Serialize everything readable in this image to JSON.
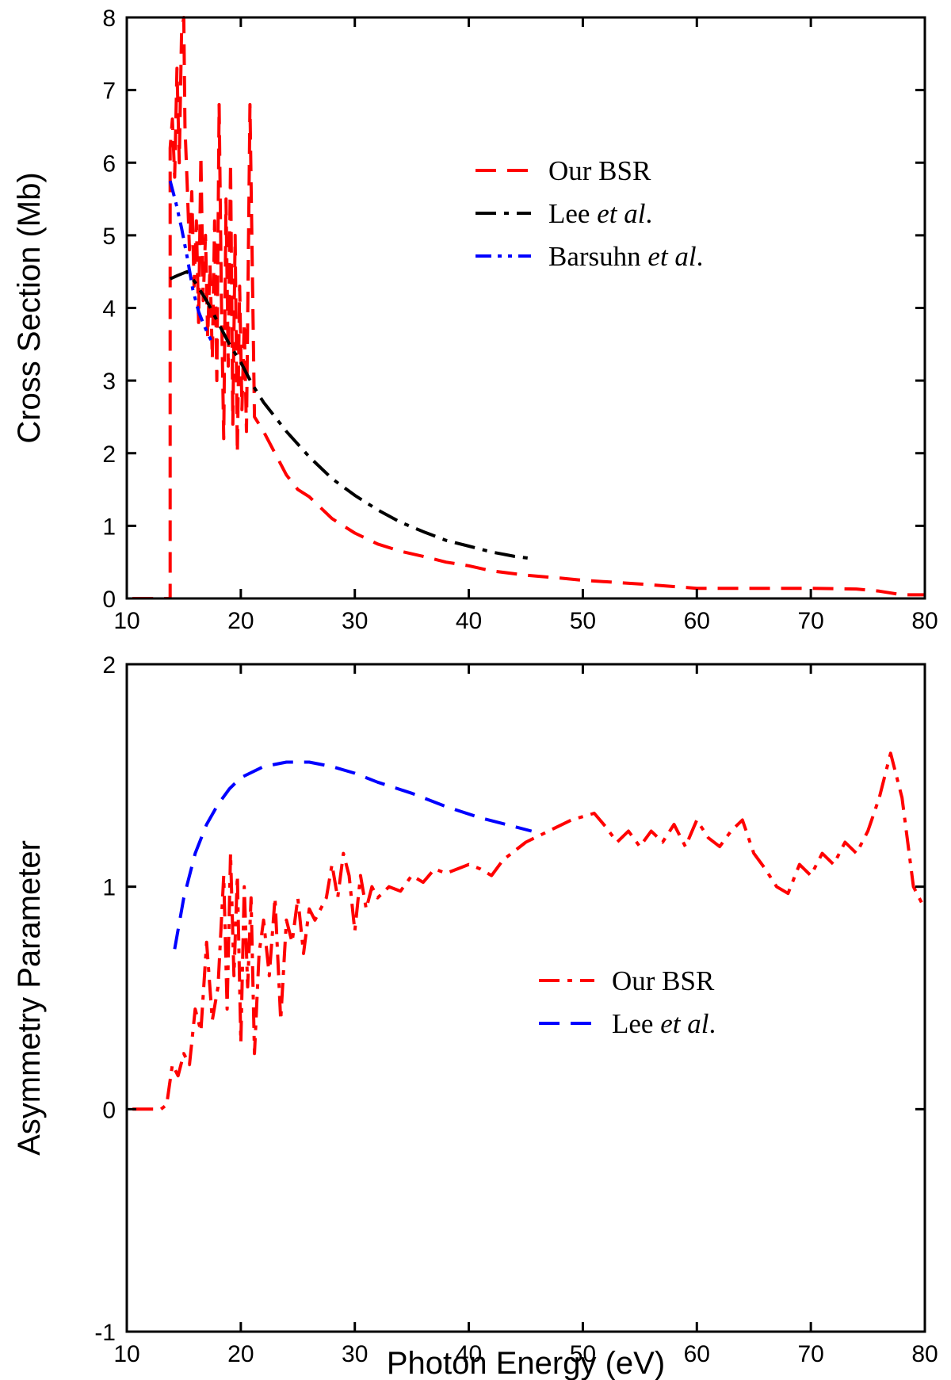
{
  "chart_data": [
    {
      "type": "line",
      "ylabel": "Cross Section (Mb)",
      "xlabel": "",
      "xlim": [
        10,
        80
      ],
      "ylim": [
        0,
        8
      ],
      "x_ticks": [
        "10",
        "20",
        "30",
        "40",
        "50",
        "60",
        "70",
        "80"
      ],
      "y_ticks": [
        "0",
        "1",
        "2",
        "3",
        "4",
        "5",
        "6",
        "7",
        "8"
      ],
      "legend_position": "top-center",
      "series": [
        {
          "name": "Our BSR",
          "legend": {
            "main": "Our BSR",
            "italic": "",
            "suffix": ""
          },
          "color": "#ff0000",
          "style": "dash",
          "x": [
            10.5,
            13.0,
            13.8,
            13.8,
            14.0,
            14.2,
            14.4,
            14.6,
            14.8,
            15.0,
            15.1,
            15.3,
            15.5,
            15.7,
            15.9,
            16.1,
            16.3,
            16.5,
            16.7,
            16.9,
            17.1,
            17.3,
            17.5,
            17.7,
            17.9,
            18.1,
            18.3,
            18.5,
            18.7,
            18.9,
            19.1,
            19.3,
            19.5,
            19.7,
            19.9,
            20.1,
            20.3,
            20.5,
            20.8,
            21.2,
            22.0,
            23.0,
            24.0,
            25.0,
            26.0,
            27.0,
            28.0,
            29.0,
            30.0,
            32.0,
            34.0,
            36.0,
            38.0,
            40.0,
            42.0,
            45.0,
            48.0,
            50.0,
            55.0,
            60.0,
            65.0,
            70.0,
            74.0,
            76.0,
            78.0,
            80.0
          ],
          "y": [
            0.0,
            0.0,
            0.0,
            6.2,
            6.6,
            5.8,
            7.3,
            6.0,
            7.8,
            8.0,
            6.5,
            5.7,
            4.8,
            5.6,
            4.3,
            5.2,
            3.8,
            6.1,
            4.1,
            5.0,
            3.6,
            4.6,
            3.3,
            5.2,
            3.0,
            6.8,
            4.1,
            2.2,
            5.5,
            3.2,
            6.0,
            2.4,
            5.0,
            2.0,
            4.3,
            2.6,
            3.8,
            2.3,
            6.8,
            2.5,
            2.3,
            2.0,
            1.7,
            1.5,
            1.4,
            1.25,
            1.1,
            1.0,
            0.9,
            0.75,
            0.65,
            0.58,
            0.5,
            0.45,
            0.38,
            0.32,
            0.28,
            0.25,
            0.2,
            0.14,
            0.14,
            0.14,
            0.13,
            0.1,
            0.05,
            0.05
          ]
        },
        {
          "name": "Lee et al.",
          "legend": {
            "main": "Lee ",
            "italic": "et al",
            "suffix": "."
          },
          "color": "#000000",
          "style": "dashdot",
          "x": [
            13.8,
            14.5,
            15.3,
            16.0,
            17.0,
            18.0,
            19.0,
            20.0,
            21.0,
            22.0,
            24.0,
            26.0,
            28.0,
            30.0,
            32.0,
            34.0,
            36.0,
            38.0,
            40.0,
            42.0,
            44.0,
            45.5
          ],
          "y": [
            4.4,
            4.45,
            4.5,
            4.35,
            4.1,
            3.8,
            3.5,
            3.25,
            2.95,
            2.7,
            2.3,
            1.95,
            1.65,
            1.42,
            1.22,
            1.05,
            0.92,
            0.8,
            0.72,
            0.64,
            0.58,
            0.55
          ]
        },
        {
          "name": "Barsuhn et al.",
          "legend": {
            "main": "Barsuhn ",
            "italic": "et al",
            "suffix": "."
          },
          "color": "#0000ff",
          "style": "dashdotdot",
          "x": [
            13.8,
            14.3,
            14.8,
            15.3,
            15.8,
            16.3,
            16.8,
            17.4
          ],
          "y": [
            5.75,
            5.45,
            5.1,
            4.7,
            4.25,
            3.95,
            3.75,
            3.55
          ]
        }
      ]
    },
    {
      "type": "line",
      "ylabel": "Asymmetry Parameter",
      "xlabel": "Photon Energy (eV)",
      "xlim": [
        10,
        80
      ],
      "ylim": [
        -1,
        2
      ],
      "x_ticks": [
        "10",
        "20",
        "30",
        "40",
        "50",
        "60",
        "70",
        "80"
      ],
      "y_ticks": [
        "-1",
        "0",
        "1",
        "2"
      ],
      "legend_position": "center-right",
      "series": [
        {
          "name": "Our BSR",
          "legend": {
            "main": "Our BSR",
            "italic": "",
            "suffix": ""
          },
          "color": "#ff0000",
          "style": "dashdot",
          "x": [
            10.5,
            13.0,
            13.5,
            14.0,
            14.5,
            15.0,
            15.5,
            16.0,
            16.5,
            17.0,
            17.5,
            18.0,
            18.5,
            18.8,
            19.1,
            19.4,
            19.7,
            20.0,
            20.3,
            20.6,
            20.9,
            21.2,
            21.6,
            22.0,
            22.5,
            23.0,
            23.5,
            24.0,
            24.5,
            25.0,
            25.5,
            26.0,
            26.5,
            27.0,
            27.5,
            28.0,
            28.5,
            29.0,
            29.5,
            30.0,
            30.5,
            31.0,
            31.5,
            32.0,
            33.0,
            34.0,
            35.0,
            36.0,
            37.0,
            38.0,
            39.0,
            40.0,
            41.0,
            42.0,
            43.0,
            45.0,
            47.0,
            49.0,
            51.0,
            52.0,
            53.0,
            54.0,
            55.0,
            56.0,
            57.0,
            58.0,
            59.0,
            60.0,
            61.0,
            62.0,
            63.0,
            64.0,
            65.0,
            66.0,
            67.0,
            68.0,
            69.0,
            70.0,
            71.0,
            72.0,
            73.0,
            74.0,
            75.0,
            76.0,
            77.0,
            78.0,
            79.0,
            80.0
          ],
          "y": [
            0.0,
            0.0,
            0.02,
            0.2,
            0.15,
            0.25,
            0.2,
            0.45,
            0.35,
            0.75,
            0.4,
            0.55,
            1.05,
            0.45,
            1.15,
            0.6,
            1.05,
            0.3,
            1.0,
            0.55,
            0.95,
            0.25,
            0.7,
            0.85,
            0.6,
            0.95,
            0.4,
            0.85,
            0.75,
            0.95,
            0.7,
            0.9,
            0.85,
            0.9,
            0.95,
            1.1,
            0.95,
            1.15,
            1.05,
            0.8,
            1.05,
            0.9,
            1.0,
            0.95,
            1.0,
            0.98,
            1.05,
            1.02,
            1.08,
            1.06,
            1.08,
            1.1,
            1.08,
            1.05,
            1.12,
            1.2,
            1.25,
            1.3,
            1.33,
            1.27,
            1.2,
            1.25,
            1.18,
            1.25,
            1.2,
            1.28,
            1.18,
            1.3,
            1.22,
            1.18,
            1.25,
            1.3,
            1.15,
            1.08,
            1.0,
            0.97,
            1.1,
            1.05,
            1.15,
            1.1,
            1.2,
            1.15,
            1.25,
            1.4,
            1.6,
            1.4,
            1.0,
            0.9
          ]
        },
        {
          "name": "Lee et al.",
          "legend": {
            "main": "Lee ",
            "italic": "et al",
            "suffix": "."
          },
          "color": "#0000ff",
          "style": "dash",
          "x": [
            14.2,
            15.0,
            16.0,
            17.0,
            18.0,
            19.0,
            20.0,
            22.0,
            24.0,
            26.0,
            28.0,
            30.0,
            32.0,
            35.0,
            38.0,
            41.0,
            44.0,
            45.5
          ],
          "y": [
            0.72,
            0.95,
            1.15,
            1.28,
            1.37,
            1.44,
            1.49,
            1.54,
            1.56,
            1.56,
            1.54,
            1.51,
            1.47,
            1.42,
            1.36,
            1.31,
            1.27,
            1.25
          ]
        }
      ]
    }
  ]
}
